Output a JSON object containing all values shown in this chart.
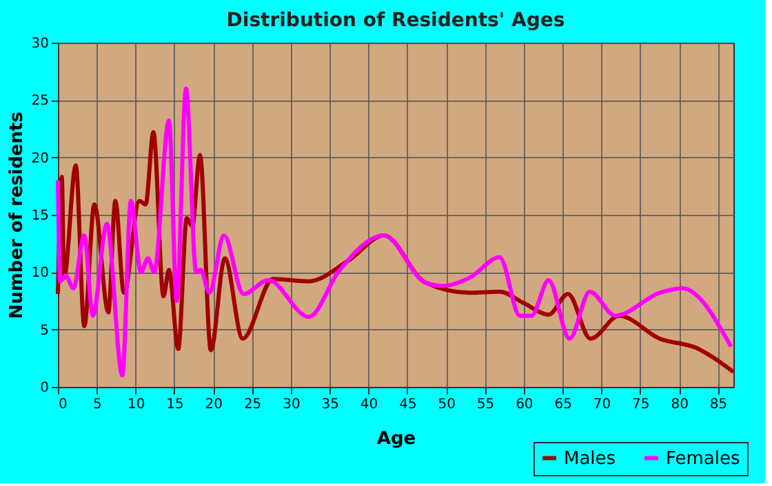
{
  "chart_data": {
    "type": "line",
    "title": "Distribution of Residents' Ages",
    "xlabel": "Age",
    "ylabel": "Number of residents",
    "xlim": [
      0,
      87
    ],
    "xticks": [
      0,
      5,
      10,
      15,
      20,
      25,
      30,
      35,
      40,
      45,
      50,
      55,
      60,
      65,
      70,
      75,
      80,
      85
    ],
    "ylim": [
      0,
      30
    ],
    "yticks": [
      0,
      5,
      10,
      15,
      20,
      25,
      30
    ],
    "grid": true,
    "legend": "bottom right",
    "marker": "none",
    "line_style": "solid",
    "series": [
      {
        "name": "Males",
        "color": "#a00000",
        "x": [
          0,
          0.5,
          0.8,
          2.3,
          3.4,
          4.7,
          6.5,
          7.4,
          8.5,
          10.5,
          11.3,
          12.3,
          13.6,
          14.3,
          15.5,
          16.6,
          17.3,
          18.3,
          19.7,
          21.5,
          23.8,
          27.7,
          32.3,
          37.4,
          42,
          47.3,
          53,
          56.9,
          60,
          63.2,
          65.7,
          68.6,
          72.3,
          77.5,
          82.2,
          87
        ],
        "values": [
          8.1,
          18.3,
          9.5,
          19.3,
          5.3,
          15.9,
          6.5,
          16.2,
          8.2,
          16.2,
          15.9,
          22.2,
          7.9,
          10.2,
          3.3,
          14.7,
          14,
          20.2,
          3.2,
          11.2,
          4.2,
          9.4,
          9.2,
          11,
          13.2,
          9.1,
          8.2,
          8.3,
          7.3,
          6.3,
          8.1,
          4.2,
          6.2,
          4.2,
          3.4,
          1.3
        ]
      },
      {
        "name": "Females",
        "color": "#ff00ff",
        "x": [
          0,
          0.3,
          1,
          2,
          3.4,
          4.5,
          6.3,
          8.3,
          9.4,
          10.7,
          11.6,
          12.4,
          14.3,
          15.3,
          16.5,
          17.8,
          18.4,
          19.5,
          21.4,
          23.9,
          27.1,
          32.3,
          36.2,
          42,
          47.3,
          49.6,
          53,
          56.9,
          59.5,
          61,
          63.2,
          65.9,
          68.5,
          71.8,
          77.5,
          80.4,
          86.7
        ],
        "values": [
          18,
          9.2,
          9.7,
          8.6,
          13.2,
          6.2,
          14.2,
          1,
          16.2,
          10,
          11.2,
          10,
          23.2,
          7.5,
          26,
          10,
          10.2,
          8.2,
          13.2,
          8.1,
          9.3,
          6.1,
          10.1,
          13.2,
          9.1,
          8.8,
          9.5,
          11.3,
          6.2,
          6.2,
          9.3,
          4.2,
          8.3,
          6.2,
          8.2,
          8.6,
          3.5
        ]
      }
    ]
  }
}
